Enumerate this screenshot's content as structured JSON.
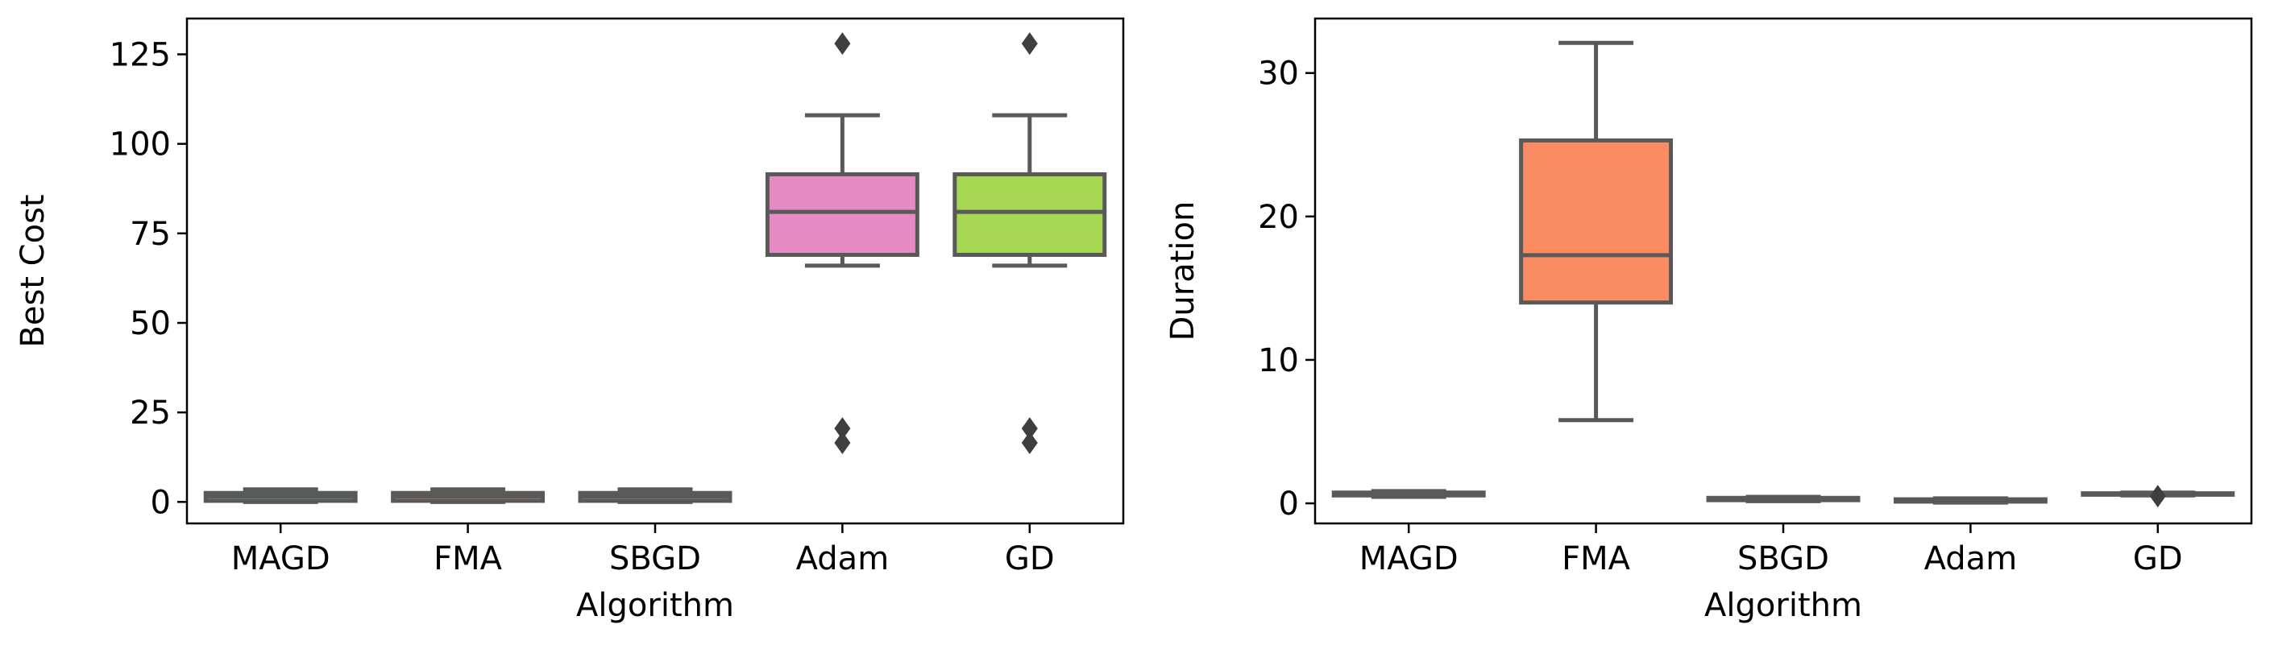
{
  "chart_data": [
    {
      "type": "box",
      "xlabel": "Algorithm",
      "ylabel": "Best Cost",
      "ylim": [
        -6,
        135
      ],
      "yticks": [
        0,
        25,
        50,
        75,
        100,
        125
      ],
      "grid": false,
      "categories": [
        "MAGD",
        "FMA",
        "SBGD",
        "Adam",
        "GD"
      ],
      "boxes": [
        {
          "category": "MAGD",
          "color": "#66c2a5",
          "whislo": 0,
          "q1": 0.3,
          "med": 1.5,
          "q3": 2.5,
          "whishi": 3.5,
          "fliers": []
        },
        {
          "category": "FMA",
          "color": "#fc8d62",
          "whislo": 0,
          "q1": 0.3,
          "med": 1.5,
          "q3": 2.5,
          "whishi": 3.5,
          "fliers": []
        },
        {
          "category": "SBGD",
          "color": "#8da0cb",
          "whislo": 0,
          "q1": 0.3,
          "med": 1.5,
          "q3": 2.5,
          "whishi": 3.5,
          "fliers": []
        },
        {
          "category": "Adam",
          "color": "#e78ac3",
          "whislo": 66,
          "q1": 69,
          "med": 81,
          "q3": 91.5,
          "whishi": 108,
          "fliers": [
            128,
            20.5,
            16.5
          ]
        },
        {
          "category": "GD",
          "color": "#a6d854",
          "whislo": 66,
          "q1": 69,
          "med": 81,
          "q3": 91.5,
          "whishi": 108,
          "fliers": [
            128,
            20.5,
            16.5
          ]
        }
      ]
    },
    {
      "type": "box",
      "xlabel": "Algorithm",
      "ylabel": "Duration",
      "ylim": [
        -1.4,
        33.8
      ],
      "yticks": [
        0,
        10,
        20,
        30
      ],
      "grid": false,
      "categories": [
        "MAGD",
        "FMA",
        "SBGD",
        "Adam",
        "GD"
      ],
      "boxes": [
        {
          "category": "MAGD",
          "color": "#66c2a5",
          "whislo": 0.45,
          "q1": 0.55,
          "med": 0.65,
          "q3": 0.75,
          "whishi": 0.85,
          "fliers": []
        },
        {
          "category": "FMA",
          "color": "#fc8d62",
          "whislo": 5.8,
          "q1": 14.0,
          "med": 17.3,
          "q3": 25.3,
          "whishi": 32.1,
          "fliers": []
        },
        {
          "category": "SBGD",
          "color": "#8da0cb",
          "whislo": 0.15,
          "q1": 0.22,
          "med": 0.3,
          "q3": 0.38,
          "whishi": 0.45,
          "fliers": []
        },
        {
          "category": "Adam",
          "color": "#e78ac3",
          "whislo": 0.05,
          "q1": 0.12,
          "med": 0.2,
          "q3": 0.28,
          "whishi": 0.35,
          "fliers": []
        },
        {
          "category": "GD",
          "color": "#a6d854",
          "whislo": 0.55,
          "q1": 0.6,
          "med": 0.65,
          "q3": 0.7,
          "whishi": 0.75,
          "fliers": [
            0.5
          ]
        }
      ]
    }
  ]
}
